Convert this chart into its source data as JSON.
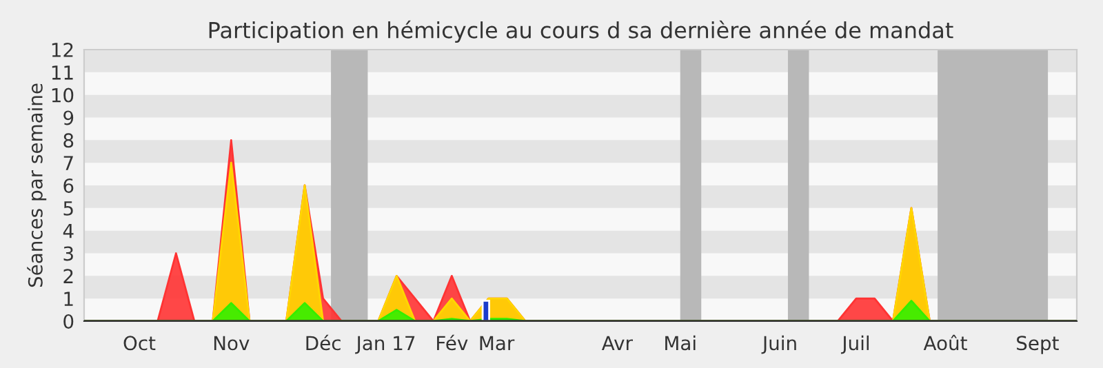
{
  "chart_data": {
    "type": "area",
    "title": "Participation en hémicycle au cours d sa dernière année de mandat",
    "ylabel": "Séances par semaine",
    "x": [
      "2016-09-26",
      "2016-10-03",
      "2016-10-10",
      "2016-10-17",
      "2016-10-24",
      "2016-10-31",
      "2016-11-07",
      "2016-11-14",
      "2016-11-21",
      "2016-11-28",
      "2016-12-05",
      "2016-12-12",
      "2016-12-19",
      "2016-12-26",
      "2017-01-02",
      "2017-01-09",
      "2017-01-16",
      "2017-01-23",
      "2017-01-30",
      "2017-02-06",
      "2017-02-13",
      "2017-02-20",
      "2017-02-27",
      "2017-03-06",
      "2017-03-13",
      "2017-03-20",
      "2017-03-27",
      "2017-04-03",
      "2017-04-10",
      "2017-04-17",
      "2017-04-24",
      "2017-05-01",
      "2017-05-08",
      "2017-05-15",
      "2017-05-22",
      "2017-05-29",
      "2017-06-05",
      "2017-06-12",
      "2017-06-19",
      "2017-06-26",
      "2017-07-03",
      "2017-07-10",
      "2017-07-17",
      "2017-07-24",
      "2017-07-31",
      "2017-08-07",
      "2017-08-14",
      "2017-08-21",
      "2017-08-28",
      "2017-09-04",
      "2017-09-11",
      "2017-09-18",
      "2017-09-25",
      "2017-10-02",
      "2017-10-09"
    ],
    "series": [
      {
        "color": "#ff3333",
        "values": [
          0,
          0,
          0,
          0,
          0,
          3,
          0,
          0,
          8,
          0,
          0,
          0,
          6,
          1,
          0,
          0,
          0,
          2,
          1,
          0,
          2,
          0,
          1,
          1,
          0,
          0,
          0,
          0,
          0,
          0,
          0,
          0,
          0,
          0,
          0,
          0,
          0,
          0,
          0,
          0,
          0,
          0,
          1,
          1,
          0,
          5,
          0,
          0,
          0,
          0,
          0,
          0,
          0,
          0,
          0
        ]
      },
      {
        "color": "#ffd700",
        "values": [
          0,
          0,
          0,
          0,
          0,
          0,
          0,
          0,
          7,
          0,
          0,
          0,
          6,
          0,
          0,
          0,
          0,
          2,
          0,
          0,
          1,
          0,
          1,
          1,
          0,
          0,
          0,
          0,
          0,
          0,
          0,
          0,
          0,
          0,
          0,
          0,
          0,
          0,
          0,
          0,
          0,
          0,
          0,
          0,
          0,
          5,
          0,
          0,
          0,
          0,
          0,
          0,
          0,
          0,
          0
        ]
      },
      {
        "color": "#33ee00",
        "values": [
          0,
          0,
          0,
          0,
          0,
          0,
          0,
          0,
          0.8,
          0,
          0,
          0,
          0.8,
          0,
          0,
          0,
          0,
          0.5,
          0,
          0,
          0.1,
          0,
          0.1,
          0.1,
          0,
          0,
          0,
          0,
          0,
          0,
          0,
          0,
          0,
          0,
          0,
          0,
          0,
          0,
          0,
          0,
          0,
          0,
          0,
          0,
          0,
          0.9,
          0,
          0,
          0,
          0,
          0,
          0,
          0,
          0,
          0
        ]
      },
      {
        "type": "bar",
        "color": "#1a3ccc",
        "x": [
          "2017-02-26"
        ],
        "values": [
          0.9
        ]
      }
    ],
    "xlim": [
      "2016-09-26",
      "2017-10-09"
    ],
    "xticks": [
      {
        "value": "2016-10-17",
        "label": "Oct"
      },
      {
        "value": "2016-11-21",
        "label": "Nov"
      },
      {
        "value": "2016-12-26",
        "label": "Déc"
      },
      {
        "value": "2017-01-19",
        "label": "Jan 17"
      },
      {
        "value": "2017-02-13",
        "label": "Fév"
      },
      {
        "value": "2017-03-02",
        "label": "Mar"
      },
      {
        "value": "2017-04-17",
        "label": "Avr"
      },
      {
        "value": "2017-05-11",
        "label": "Mai"
      },
      {
        "value": "2017-06-18",
        "label": "Juin"
      },
      {
        "value": "2017-07-17",
        "label": "Juil"
      },
      {
        "value": "2017-08-20",
        "label": "Août"
      },
      {
        "value": "2017-09-24",
        "label": "Sept"
      }
    ],
    "ylim": [
      0,
      12
    ],
    "yticks": [
      0,
      1,
      2,
      3,
      4,
      5,
      6,
      7,
      8,
      9,
      10,
      11,
      12
    ],
    "bands": [
      {
        "axis": "x",
        "from": "2016-12-29",
        "to": "2017-01-12",
        "color": "#b8b8b8"
      },
      {
        "axis": "x",
        "from": "2017-05-11",
        "to": "2017-05-19",
        "color": "#b8b8b8"
      },
      {
        "axis": "x",
        "from": "2017-06-21",
        "to": "2017-06-29",
        "color": "#b8b8b8"
      },
      {
        "axis": "x",
        "from": "2017-08-17",
        "to": "2017-09-28",
        "color": "#b8b8b8"
      }
    ]
  }
}
